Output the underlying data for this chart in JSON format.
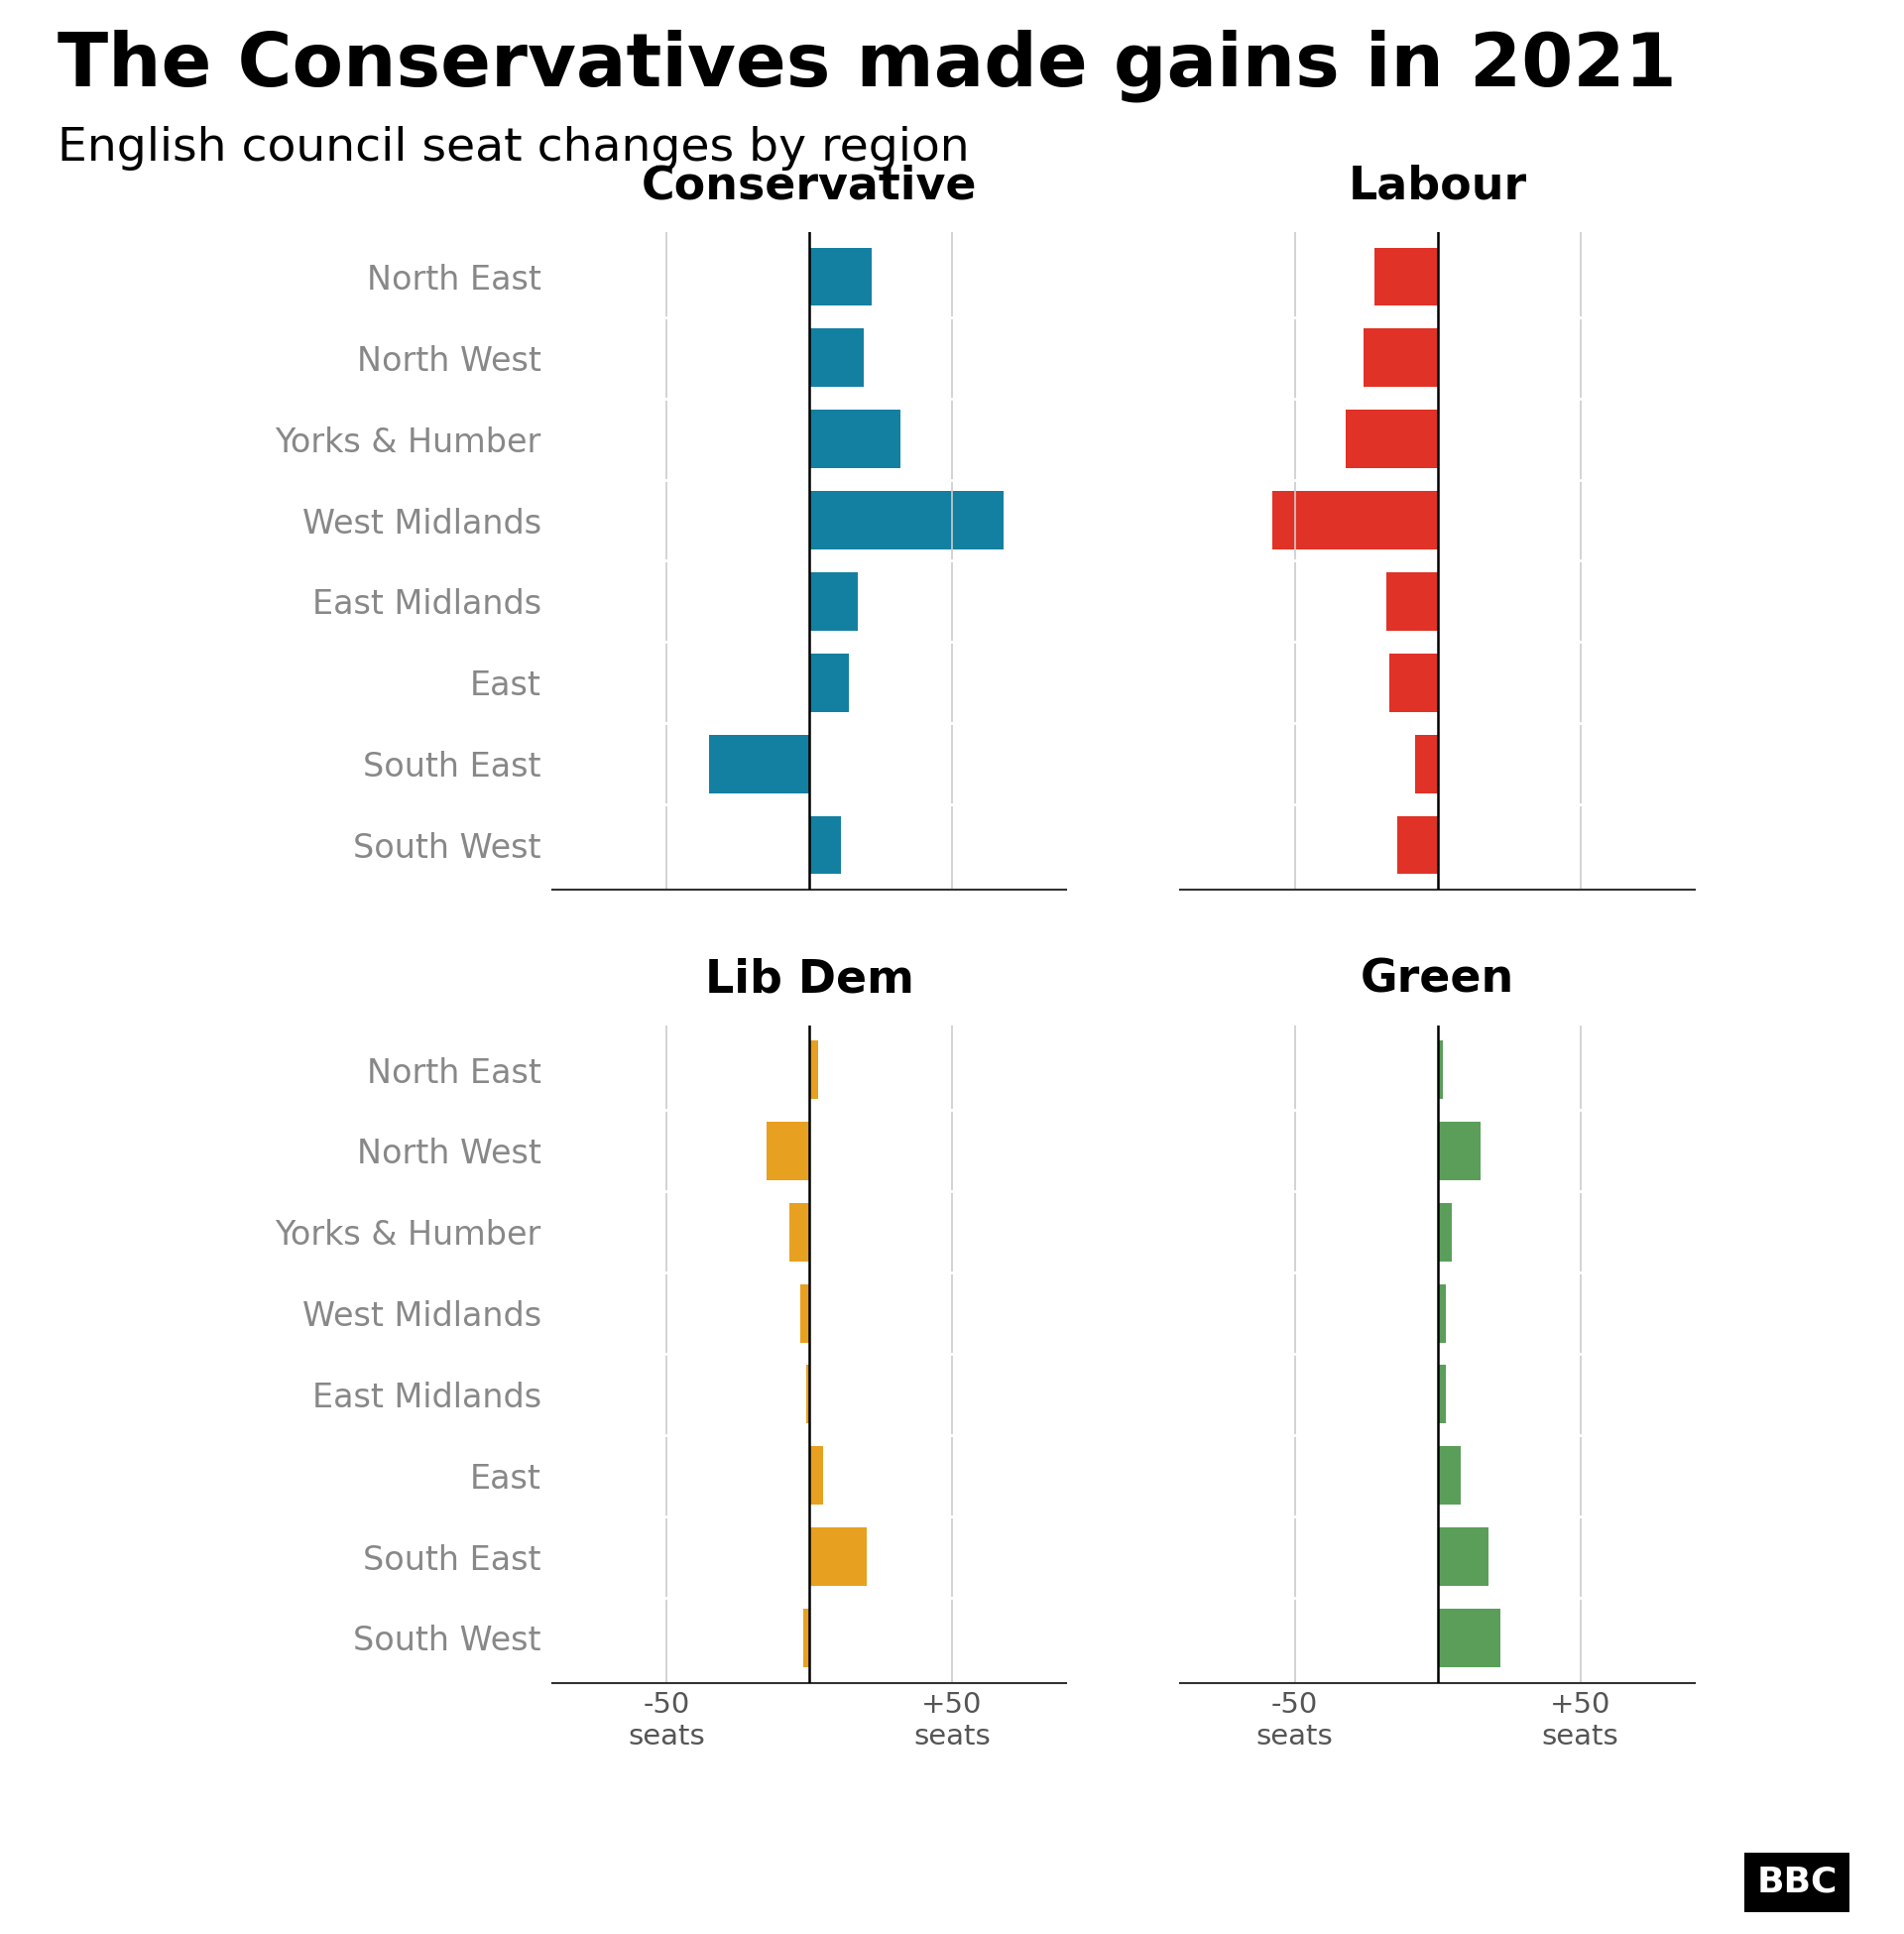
{
  "title": "The Conservatives made gains in 2021",
  "subtitle": "English council seat changes by region",
  "regions": [
    "North East",
    "North West",
    "Yorks & Humber",
    "West Midlands",
    "East Midlands",
    "East",
    "South East",
    "South West"
  ],
  "conservative": [
    22,
    19,
    32,
    68,
    17,
    14,
    -35,
    11
  ],
  "labour": [
    -22,
    -26,
    -32,
    -58,
    -18,
    -17,
    -8,
    -14
  ],
  "libdem": [
    3,
    -15,
    -7,
    -3,
    -1,
    5,
    20,
    -2
  ],
  "green": [
    2,
    15,
    5,
    3,
    3,
    8,
    18,
    22
  ],
  "con_color": "#1380A1",
  "lab_color": "#E03226",
  "libdem_color": "#E8A020",
  "green_color": "#5A9E5A",
  "label_color": "#888888",
  "title_color": "#000000",
  "subtitle_color": "#000000",
  "bg_color": "#FFFFFF",
  "xlim": [
    -90,
    90
  ],
  "xtick_vals": [
    -50,
    0,
    50
  ]
}
